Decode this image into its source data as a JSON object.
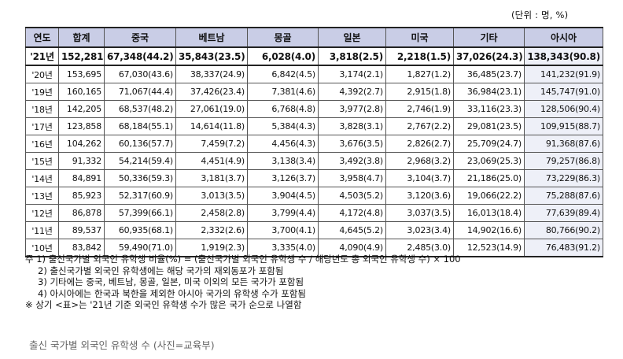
{
  "unit_label": "(단위 : 명, %)",
  "headers": [
    "연도",
    "합계",
    "중국",
    "베트남",
    "몽골",
    "일본",
    "미국",
    "기타",
    "아시아"
  ],
  "rows": [
    [
      "'21년",
      "152,281",
      "67,348(44.2)",
      "35,843(23.5)",
      "6,028(4.0)",
      "3,818(2.5)",
      "2,218(1.5)",
      "37,026(24.3)",
      "138,343(90.8)"
    ],
    [
      "'20년",
      "153,695",
      "67,030(43.6)",
      "38,337(24.9)",
      "6,842(4.5)",
      "3,174(2.1)",
      "1,827(1.2)",
      "36,485(23.7)",
      "141,232(91.9)"
    ],
    [
      "'19년",
      "160,165",
      "71,067(44.4)",
      "37,426(23.4)",
      "7,381(4.6)",
      "4,392(2.7)",
      "2,915(1.8)",
      "36,984(23.1)",
      "145,747(91.0)"
    ],
    [
      "'18년",
      "142,205",
      "68,537(48.2)",
      "27,061(19.0)",
      "6,768(4.8)",
      "3,977(2.8)",
      "2,746(1.9)",
      "33,116(23.3)",
      "128,506(90.4)"
    ],
    [
      "'17년",
      "123,858",
      "68,184(55.1)",
      "14,614(11.8)",
      "5,384(4.3)",
      "3,828(3.1)",
      "2,767(2.2)",
      "29,081(23.5)",
      "109,915(88.7)"
    ],
    [
      "'16년",
      "104,262",
      "60,136(57.7)",
      "7,459(7.2)",
      "4,456(4.3)",
      "3,676(3.5)",
      "2,826(2.7)",
      "25,709(24.7)",
      "91,368(87.6)"
    ],
    [
      "'15년",
      "91,332",
      "54,214(59.4)",
      "4,451(4.9)",
      "3,138(3.4)",
      "3,492(3.8)",
      "2,968(3.2)",
      "23,069(25.3)",
      "79,257(86.8)"
    ],
    [
      "'14년",
      "84,891",
      "50,336(59.3)",
      "3,181(3.7)",
      "3,126(3.7)",
      "3,958(4.7)",
      "3,104(3.7)",
      "21,186(25.0)",
      "73,229(86.3)"
    ],
    [
      "'13년",
      "85,923",
      "52,317(60.9)",
      "3,013(3.5)",
      "3,904(4.5)",
      "4,503(5.2)",
      "3,120(3.6)",
      "19,066(22.2)",
      "75,288(87.6)"
    ],
    [
      "'12년",
      "86,878",
      "57,399(66.1)",
      "2,458(2.8)",
      "3,799(4.4)",
      "4,172(4.8)",
      "3,037(3.5)",
      "16,013(18.4)",
      "77,639(89.4)"
    ],
    [
      "'11년",
      "89,537",
      "60,935(68.1)",
      "2,332(2.6)",
      "3,700(4.1)",
      "4,645(5.2)",
      "3,023(3.4)",
      "14,902(16.6)",
      "80,766(90.2)"
    ],
    [
      "'10년",
      "83,842",
      "59,490(71.0)",
      "1,919(2.3)",
      "3,335(4.0)",
      "4,090(4.9)",
      "2,485(3.0)",
      "12,523(14.9)",
      "76,483(91.2)"
    ]
  ],
  "notes": [
    "주 1) 출신국가별 외국인 유학생 비율(%) = (출신국가별 외국인 유학생 수 / 해당년도 총 외국인 유학생 수) × 100",
    "2) 출신국가별 외국인 유학생에는 해당 국가의 재외동포가 포함됨",
    "3) 기타에는 중국, 베트남, 몽골, 일본, 미국 이외의 모든 국가가 포함됨",
    "4) 아시아에는 한국과 북한을 제외한 아시아 국가의 유학생 수가 포함됨",
    "※ 상기 <표>는 '21년 기준 외국인 유학생 수가 많은 국가 순으로 나열함"
  ],
  "caption": "출신 국가별 외국인 유학생 수 (사진=교육부)"
}
